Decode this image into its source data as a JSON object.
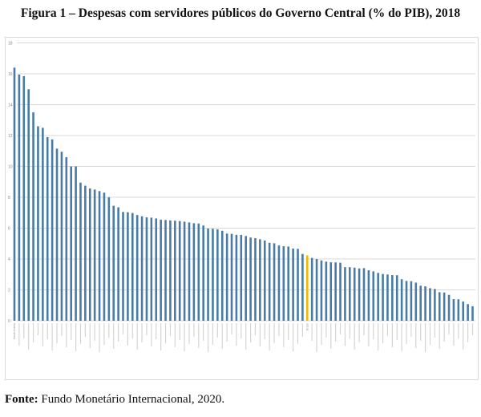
{
  "figure": {
    "title": "Figura 1 – Despesas com servidores públicos do Governo Central (% do PIB), 2018",
    "source_label": "Fonte:",
    "source_text": " Fundo Monetário Internacional, 2020."
  },
  "colors": {
    "bar": "#4a7ba6",
    "highlight": "#f2b705",
    "grid": "#d9d9d9"
  },
  "chart_data": {
    "type": "bar",
    "title": "Despesas com servidores públicos do Governo Central (% do PIB), 2018",
    "xlabel": "",
    "ylabel": "% do PIB",
    "ylim": [
      0,
      18
    ],
    "yticks": [
      0,
      2,
      4,
      6,
      8,
      10,
      12,
      14,
      16,
      18
    ],
    "grid": true,
    "legend": "none",
    "highlight_index": 62,
    "highlight_note": "Country highlighted in orange (Brazil)",
    "categories": [
      "Saudi Arabia",
      "",
      "",
      "",
      "",
      "",
      "",
      "",
      "",
      "",
      "",
      "",
      "",
      "",
      "",
      "",
      "",
      "",
      "",
      "",
      "",
      "",
      "",
      "",
      "",
      "",
      "",
      "",
      "",
      "",
      "",
      "",
      "",
      "",
      "",
      "",
      "",
      "",
      "",
      "",
      "",
      "",
      "",
      "",
      "",
      "",
      "",
      "",
      "",
      "",
      "",
      "",
      "",
      "",
      "",
      "",
      "",
      "",
      "",
      "",
      "",
      "",
      "Brazil",
      "",
      "",
      "",
      "",
      "",
      "",
      "",
      "",
      "",
      "",
      "",
      "",
      "",
      "",
      "",
      "",
      "",
      "",
      "",
      "",
      "",
      "",
      "",
      "",
      "",
      "",
      "",
      "",
      "",
      "",
      "",
      "",
      "",
      "",
      ""
    ],
    "values": [
      16.4,
      15.95,
      15.85,
      15.0,
      13.5,
      12.6,
      12.5,
      11.9,
      11.75,
      11.15,
      10.95,
      10.6,
      10.0,
      10.0,
      8.95,
      8.75,
      8.57,
      8.5,
      8.4,
      8.3,
      8.0,
      7.45,
      7.35,
      7.05,
      7.03,
      6.98,
      6.85,
      6.77,
      6.7,
      6.68,
      6.63,
      6.55,
      6.53,
      6.5,
      6.48,
      6.46,
      6.42,
      6.37,
      6.32,
      6.3,
      6.17,
      5.97,
      5.96,
      5.92,
      5.83,
      5.65,
      5.63,
      5.57,
      5.56,
      5.49,
      5.39,
      5.35,
      5.28,
      5.2,
      5.05,
      5.02,
      4.88,
      4.83,
      4.81,
      4.68,
      4.66,
      4.33,
      4.24,
      4.07,
      4.0,
      3.91,
      3.83,
      3.79,
      3.78,
      3.76,
      3.47,
      3.47,
      3.44,
      3.39,
      3.41,
      3.27,
      3.2,
      3.1,
      3.03,
      3.0,
      2.96,
      2.95,
      2.69,
      2.58,
      2.56,
      2.47,
      2.27,
      2.23,
      2.11,
      2.06,
      1.85,
      1.83,
      1.68,
      1.4,
      1.39,
      1.25,
      1.08,
      0.94
    ]
  }
}
